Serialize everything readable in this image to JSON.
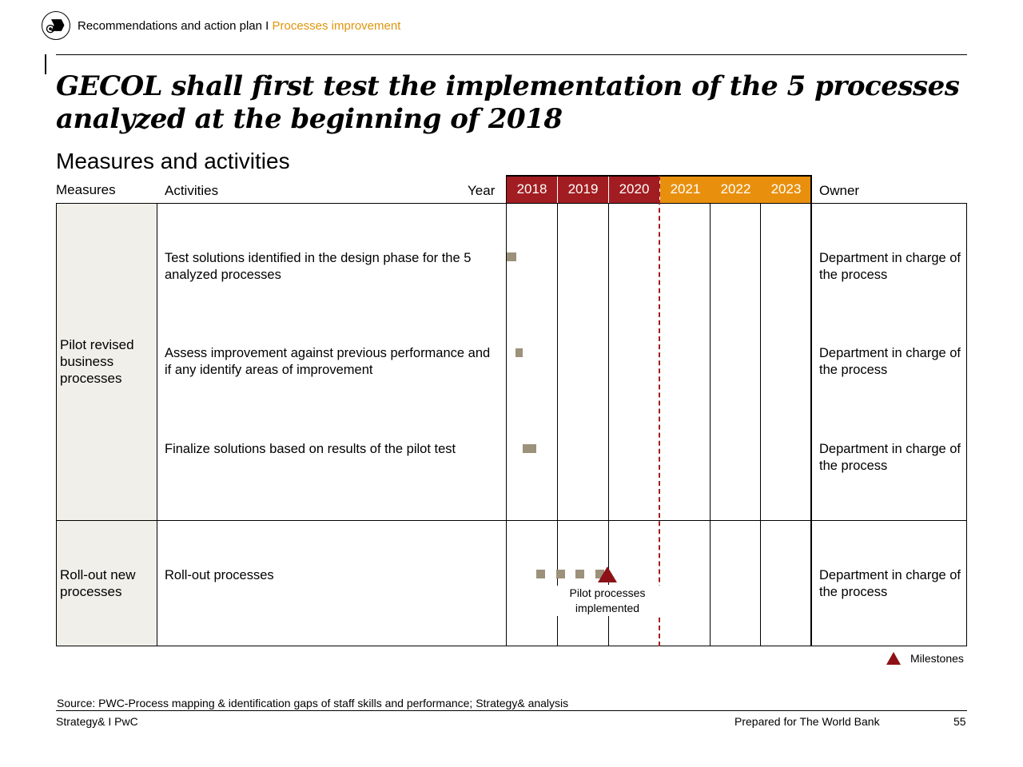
{
  "header": {
    "section": "Recommendations and action plan I ",
    "subsection": "Processes improvement"
  },
  "title": "GECOL shall first test the implementation of the 5 processes analyzed at the beginning of 2018",
  "subtitle": "Measures and activities",
  "table": {
    "col_measures": "Measures",
    "col_activities": "Activities",
    "col_year": "Year",
    "col_owner": "Owner",
    "years": [
      {
        "label": "2018",
        "color": "#a11d21"
      },
      {
        "label": "2019",
        "color": "#a11d21"
      },
      {
        "label": "2020",
        "color": "#a11d21"
      },
      {
        "label": "2021",
        "color": "#e8900e"
      },
      {
        "label": "2022",
        "color": "#e8900e"
      },
      {
        "label": "2023",
        "color": "#e8900e"
      }
    ],
    "groups": [
      {
        "measure": "Pilot revised business processes",
        "rows": [
          {
            "activity": "Test solutions identified in the design phase for the 5 analyzed processes",
            "owner": "Department in charge of the process"
          },
          {
            "activity": "Assess improvement against previous performance and if any identify areas of improvement",
            "owner": "Department in charge of the process"
          },
          {
            "activity": "Finalize solutions based on results of the pilot test",
            "owner": "Department in charge of the process"
          }
        ]
      },
      {
        "measure": "Roll-out new processes",
        "rows": [
          {
            "activity": "Roll-out processes",
            "owner": "Department in charge of the process"
          }
        ]
      }
    ],
    "milestone_label": "Pilot processes implemented"
  },
  "legend": {
    "milestones": "Milestones",
    "milestone_color": "#8c1218"
  },
  "footer": {
    "source": "Source: PWC-Process mapping & identification gaps of staff skills and performance; Strategy& analysis",
    "brand": "Strategy& I PwC",
    "prepared": "Prepared for The World Bank",
    "page": "55"
  }
}
